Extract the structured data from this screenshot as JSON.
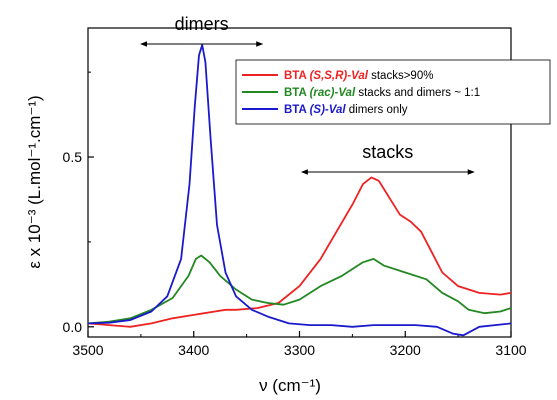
{
  "chart_data": {
    "type": "line",
    "xlabel": "ν (cm⁻¹)",
    "ylabel": "ε x 10⁻³ (L.mol⁻¹.cm⁻¹)",
    "xlim": [
      3500,
      3100
    ],
    "ylim": [
      -0.03,
      0.88
    ],
    "x_ticks": [
      3500,
      3400,
      3300,
      3200,
      3100
    ],
    "x_tick_labels": [
      "3500",
      "3400",
      "3300",
      "3200",
      "3100"
    ],
    "y_ticks": [
      0.0,
      0.5
    ],
    "y_tick_labels": [
      "0.0",
      "0.5"
    ],
    "grid": false,
    "legend_position": "top-right",
    "annotations": [
      {
        "text": "dimers",
        "arrow_from_x": 3450,
        "arrow_to_x": 3335
      },
      {
        "text": "stacks",
        "arrow_from_x": 3298,
        "arrow_to_x": 3135
      }
    ],
    "series": [
      {
        "name_prefix": "BTA ",
        "name_tag": "(S,S,R)-Val",
        "name_suffix": " stacks>90%",
        "color": "#ee2222",
        "points": [
          [
            3500,
            0.01
          ],
          [
            3480,
            0.005
          ],
          [
            3460,
            0.0
          ],
          [
            3440,
            0.01
          ],
          [
            3420,
            0.025
          ],
          [
            3400,
            0.035
          ],
          [
            3390,
            0.04
          ],
          [
            3380,
            0.045
          ],
          [
            3370,
            0.05
          ],
          [
            3360,
            0.05
          ],
          [
            3340,
            0.055
          ],
          [
            3320,
            0.07
          ],
          [
            3300,
            0.12
          ],
          [
            3280,
            0.2
          ],
          [
            3265,
            0.28
          ],
          [
            3250,
            0.36
          ],
          [
            3240,
            0.42
          ],
          [
            3232,
            0.44
          ],
          [
            3225,
            0.43
          ],
          [
            3215,
            0.38
          ],
          [
            3205,
            0.33
          ],
          [
            3195,
            0.31
          ],
          [
            3185,
            0.28
          ],
          [
            3175,
            0.22
          ],
          [
            3165,
            0.16
          ],
          [
            3150,
            0.12
          ],
          [
            3130,
            0.1
          ],
          [
            3110,
            0.095
          ],
          [
            3100,
            0.1
          ]
        ]
      },
      {
        "name_prefix": "BTA ",
        "name_tag": "(rac)-Val",
        "name_suffix": " stacks and dimers ~ 1:1",
        "color": "#228822",
        "points": [
          [
            3500,
            0.01
          ],
          [
            3480,
            0.015
          ],
          [
            3460,
            0.025
          ],
          [
            3440,
            0.05
          ],
          [
            3420,
            0.085
          ],
          [
            3405,
            0.15
          ],
          [
            3398,
            0.2
          ],
          [
            3393,
            0.21
          ],
          [
            3385,
            0.19
          ],
          [
            3375,
            0.15
          ],
          [
            3360,
            0.11
          ],
          [
            3345,
            0.08
          ],
          [
            3330,
            0.07
          ],
          [
            3315,
            0.065
          ],
          [
            3300,
            0.08
          ],
          [
            3280,
            0.12
          ],
          [
            3260,
            0.15
          ],
          [
            3240,
            0.19
          ],
          [
            3230,
            0.2
          ],
          [
            3220,
            0.18
          ],
          [
            3200,
            0.16
          ],
          [
            3180,
            0.14
          ],
          [
            3165,
            0.1
          ],
          [
            3150,
            0.075
          ],
          [
            3140,
            0.05
          ],
          [
            3125,
            0.04
          ],
          [
            3110,
            0.045
          ],
          [
            3100,
            0.055
          ]
        ]
      },
      {
        "name_prefix": "BTA ",
        "name_tag": "(S)-Val",
        "name_suffix": " dimers only",
        "color": "#1a1acc",
        "points": [
          [
            3500,
            0.01
          ],
          [
            3480,
            0.012
          ],
          [
            3460,
            0.02
          ],
          [
            3440,
            0.045
          ],
          [
            3425,
            0.09
          ],
          [
            3412,
            0.2
          ],
          [
            3404,
            0.42
          ],
          [
            3399,
            0.65
          ],
          [
            3395,
            0.8
          ],
          [
            3392,
            0.83
          ],
          [
            3389,
            0.78
          ],
          [
            3384,
            0.55
          ],
          [
            3378,
            0.3
          ],
          [
            3370,
            0.16
          ],
          [
            3360,
            0.09
          ],
          [
            3345,
            0.05
          ],
          [
            3330,
            0.03
          ],
          [
            3310,
            0.01
          ],
          [
            3290,
            0.005
          ],
          [
            3270,
            0.005
          ],
          [
            3250,
            0.0
          ],
          [
            3230,
            0.005
          ],
          [
            3210,
            0.005
          ],
          [
            3190,
            0.005
          ],
          [
            3170,
            0.0
          ],
          [
            3155,
            -0.02
          ],
          [
            3145,
            -0.025
          ],
          [
            3130,
            0.0
          ],
          [
            3115,
            0.005
          ],
          [
            3100,
            0.01
          ]
        ]
      }
    ]
  }
}
